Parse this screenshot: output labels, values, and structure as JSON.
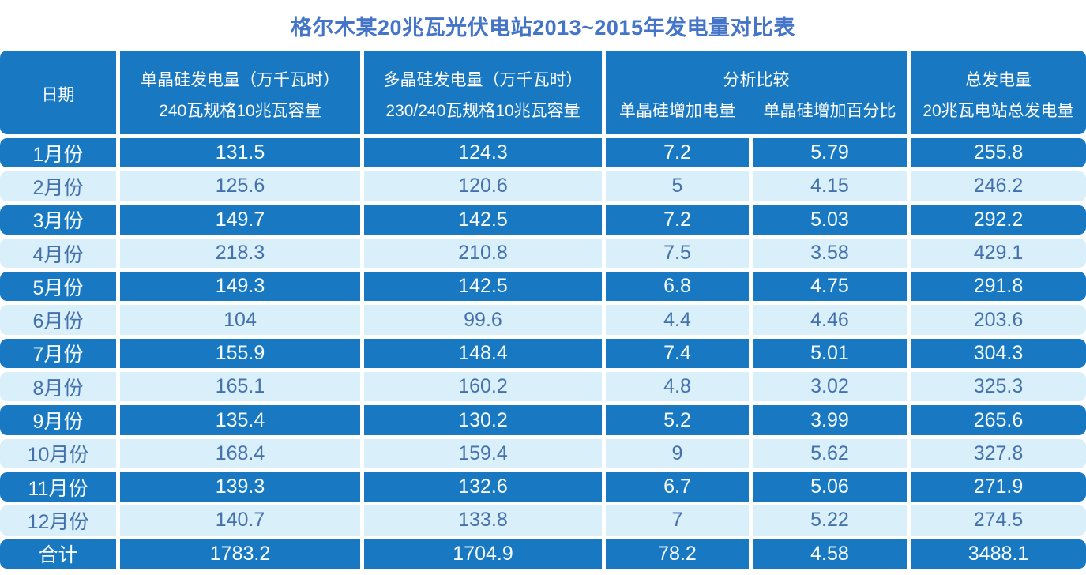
{
  "title": "格尔木某20兆瓦光伏电站2013~2015年发电量对比表",
  "colors": {
    "dark_row_bg": "#1879c2",
    "light_row_bg": "#d9effa",
    "dark_row_text": "#f6fcff",
    "light_row_text": "#4471ad",
    "title_text": "#4575c8"
  },
  "table": {
    "header": {
      "date": "日期",
      "mono_line1": "单晶硅发电量（万千瓦时）",
      "mono_line2": "240瓦规格10兆瓦容量",
      "poly_line1": "多晶硅发电量（万千瓦时）",
      "poly_line2": "230/240瓦规格10兆瓦容量",
      "analysis": "分析比较",
      "analysis_sub1": "单晶硅增加电量",
      "analysis_sub2": "单晶硅增加百分比",
      "total_line1": "总发电量",
      "total_line2": "20兆瓦电站总发电量"
    },
    "rows": [
      {
        "label": "1月份",
        "mono": "131.5",
        "poly": "124.3",
        "increase": "7.2",
        "percent": "5.79",
        "total": "255.8",
        "dark": true
      },
      {
        "label": "2月份",
        "mono": "125.6",
        "poly": "120.6",
        "increase": "5",
        "percent": "4.15",
        "total": "246.2",
        "dark": false
      },
      {
        "label": "3月份",
        "mono": "149.7",
        "poly": "142.5",
        "increase": "7.2",
        "percent": "5.03",
        "total": "292.2",
        "dark": true
      },
      {
        "label": "4月份",
        "mono": "218.3",
        "poly": "210.8",
        "increase": "7.5",
        "percent": "3.58",
        "total": "429.1",
        "dark": false
      },
      {
        "label": "5月份",
        "mono": "149.3",
        "poly": "142.5",
        "increase": "6.8",
        "percent": "4.75",
        "total": "291.8",
        "dark": true
      },
      {
        "label": "6月份",
        "mono": "104",
        "poly": "99.6",
        "increase": "4.4",
        "percent": "4.46",
        "total": "203.6",
        "dark": false
      },
      {
        "label": "7月份",
        "mono": "155.9",
        "poly": "148.4",
        "increase": "7.4",
        "percent": "5.01",
        "total": "304.3",
        "dark": true
      },
      {
        "label": "8月份",
        "mono": "165.1",
        "poly": "160.2",
        "increase": "4.8",
        "percent": "3.02",
        "total": "325.3",
        "dark": false
      },
      {
        "label": "9月份",
        "mono": "135.4",
        "poly": "130.2",
        "increase": "5.2",
        "percent": "3.99",
        "total": "265.6",
        "dark": true
      },
      {
        "label": "10月份",
        "mono": "168.4",
        "poly": "159.4",
        "increase": "9",
        "percent": "5.62",
        "total": "327.8",
        "dark": false
      },
      {
        "label": "11月份",
        "mono": "139.3",
        "poly": "132.6",
        "increase": "6.7",
        "percent": "5.06",
        "total": "271.9",
        "dark": true
      },
      {
        "label": "12月份",
        "mono": "140.7",
        "poly": "133.8",
        "increase": "7",
        "percent": "5.22",
        "total": "274.5",
        "dark": false
      },
      {
        "label": "合计",
        "mono": "1783.2",
        "poly": "1704.9",
        "increase": "78.2",
        "percent": "4.58",
        "total": "3488.1",
        "dark": true
      }
    ]
  },
  "chart_data": {
    "type": "table",
    "title": "格尔木某20兆瓦光伏电站2013~2015年发电量对比表",
    "categories": [
      "1月份",
      "2月份",
      "3月份",
      "4月份",
      "5月份",
      "6月份",
      "7月份",
      "8月份",
      "9月份",
      "10月份",
      "11月份",
      "12月份",
      "合计"
    ],
    "series": [
      {
        "name": "单晶硅发电量（万千瓦时）240瓦规格10兆瓦容量",
        "values": [
          131.5,
          125.6,
          149.7,
          218.3,
          149.3,
          104,
          155.9,
          165.1,
          135.4,
          168.4,
          139.3,
          140.7,
          1783.2
        ]
      },
      {
        "name": "多晶硅发电量（万千瓦时）230/240瓦规格10兆瓦容量",
        "values": [
          124.3,
          120.6,
          142.5,
          210.8,
          142.5,
          99.6,
          148.4,
          160.2,
          130.2,
          159.4,
          132.6,
          133.8,
          1704.9
        ]
      },
      {
        "name": "单晶硅增加电量",
        "values": [
          7.2,
          5,
          7.2,
          7.5,
          6.8,
          4.4,
          7.4,
          4.8,
          5.2,
          9,
          6.7,
          7,
          78.2
        ]
      },
      {
        "name": "单晶硅增加百分比",
        "values": [
          5.79,
          4.15,
          5.03,
          3.58,
          4.75,
          4.46,
          5.01,
          3.02,
          3.99,
          5.62,
          5.06,
          5.22,
          4.58
        ]
      },
      {
        "name": "总发电量 20兆瓦电站总发电量",
        "values": [
          255.8,
          246.2,
          292.2,
          429.1,
          291.8,
          203.6,
          304.3,
          325.3,
          265.6,
          327.8,
          271.9,
          274.5,
          3488.1
        ]
      }
    ]
  }
}
